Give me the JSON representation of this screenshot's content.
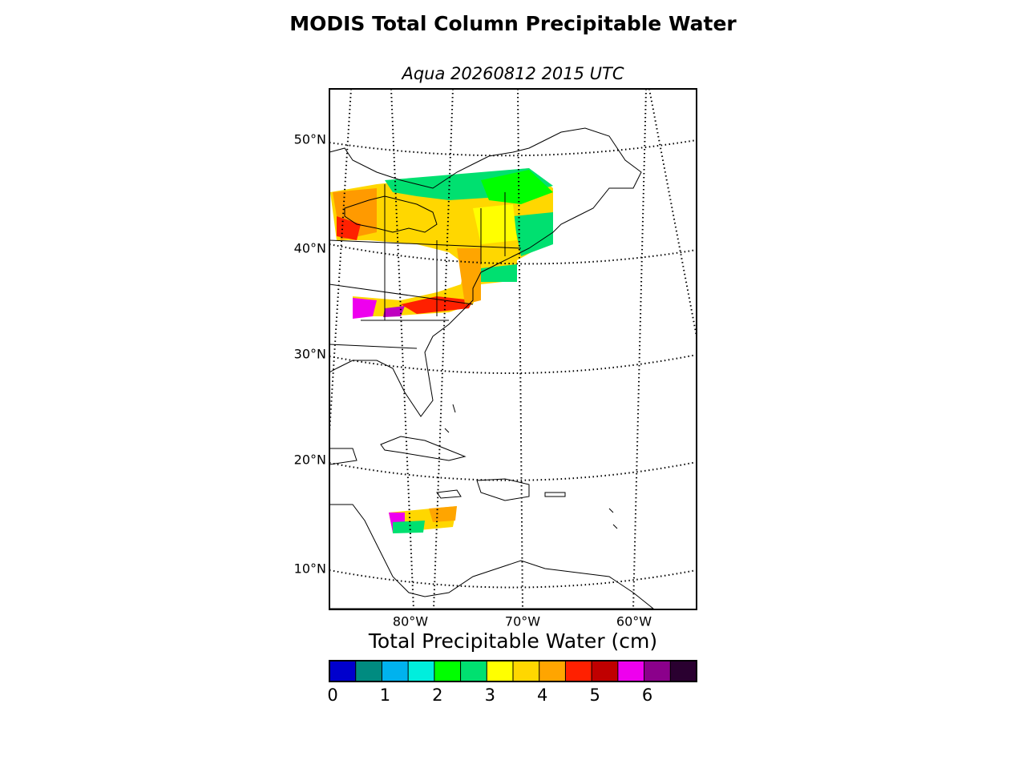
{
  "title": "MODIS Total Column Precipitable Water",
  "subtitle": "Aqua 20260812 2015 UTC",
  "map": {
    "lat_labels": [
      "50°N",
      "40°N",
      "30°N",
      "20°N",
      "10°N"
    ],
    "lon_labels": [
      "80°W",
      "70°W",
      "60°W"
    ]
  },
  "colorbar": {
    "label": "Total Precipitable Water (cm)",
    "range": [
      0,
      7
    ],
    "ticks": [
      0,
      1,
      2,
      3,
      4,
      5,
      6
    ],
    "bins": [
      0,
      0.5,
      1,
      1.5,
      2,
      2.5,
      3,
      3.5,
      4,
      4.5,
      5,
      5.5,
      6,
      6.5,
      7
    ],
    "colors": [
      "#0000cd",
      "#008b80",
      "#00b2ee",
      "#00eedd",
      "#00ff00",
      "#00e070",
      "#ffff00",
      "#ffd700",
      "#ffa500",
      "#ff2000",
      "#c00000",
      "#ee00ee",
      "#8b008b",
      "#2a0030"
    ]
  }
}
